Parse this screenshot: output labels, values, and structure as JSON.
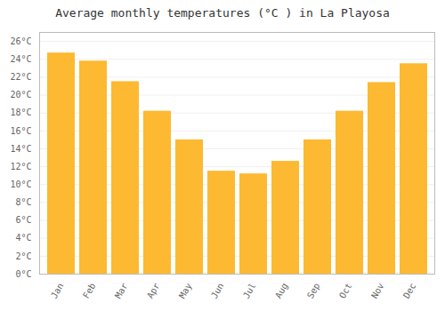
{
  "chart_data": {
    "type": "bar",
    "title": "Average monthly temperatures (°C ) in La Playosa",
    "categories": [
      "Jan",
      "Feb",
      "Mar",
      "Apr",
      "May",
      "Jun",
      "Jul",
      "Aug",
      "Sep",
      "Oct",
      "Nov",
      "Dec"
    ],
    "values": [
      24.7,
      23.8,
      21.5,
      18.2,
      15.0,
      11.5,
      11.2,
      12.6,
      15.0,
      18.2,
      21.4,
      23.5
    ],
    "color": "#FDB931",
    "ylim": [
      0,
      27
    ],
    "yticks": [
      {
        "value": 0,
        "label": "0°C"
      },
      {
        "value": 2,
        "label": "2°C"
      },
      {
        "value": 4,
        "label": "4°C"
      },
      {
        "value": 6,
        "label": "6°C"
      },
      {
        "value": 8,
        "label": "8°C"
      },
      {
        "value": 10,
        "label": "10°C"
      },
      {
        "value": 12,
        "label": "12°C"
      },
      {
        "value": 14,
        "label": "14°C"
      },
      {
        "value": 16,
        "label": "16°C"
      },
      {
        "value": 18,
        "label": "18°C"
      },
      {
        "value": 20,
        "label": "20°C"
      },
      {
        "value": 22,
        "label": "22°C"
      },
      {
        "value": 24,
        "label": "24°C"
      },
      {
        "value": 26,
        "label": "26°C"
      }
    ],
    "grid": true
  }
}
